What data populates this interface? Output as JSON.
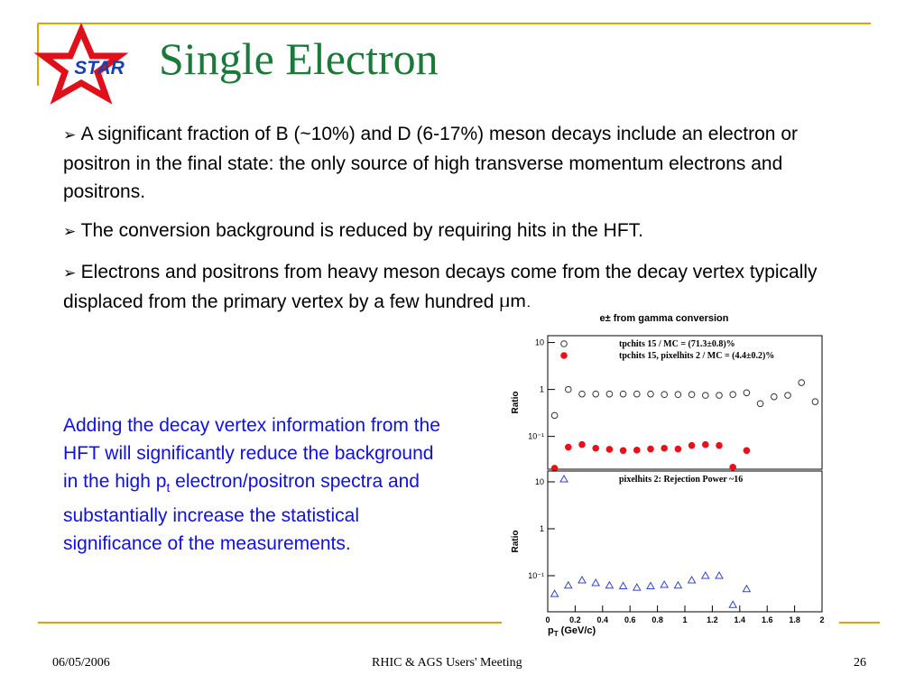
{
  "header": {
    "logo": "STAR",
    "title": "Single Electron"
  },
  "bullets": [
    "A significant fraction of B (~10%) and D (6-17%) meson decays include an electron or positron in the final state: the only source of high transverse momentum electrons and positrons.",
    "The conversion background is reduced by requiring hits in the HFT.",
    "Electrons and positrons from heavy meson decays come from the decay vertex typically displaced from the primary vertex by a few hundred μm."
  ],
  "note": {
    "before": "Adding the decay vertex information from the HFT will significantly reduce the background in the high p",
    "sub": "t",
    "after": " electron/positron spectra and substantially increase the statistical significance of the measurements."
  },
  "footer": {
    "date": "06/05/2006",
    "meeting": "RHIC & AGS Users' Meeting",
    "page": "26"
  },
  "chart_data": [
    {
      "type": "scatter",
      "title": "e± from gamma conversion",
      "y_label": "Ratio",
      "log_y": true,
      "xlim": [
        0,
        2
      ],
      "ylim": [
        0.02,
        14
      ],
      "yticks": [
        {
          "value": 0.1,
          "label": "10⁻¹"
        },
        1,
        10
      ],
      "x": [
        0.05,
        0.15,
        0.25,
        0.35,
        0.45,
        0.55,
        0.65,
        0.75,
        0.85,
        0.95,
        1.05,
        1.15,
        1.25,
        1.35,
        1.45,
        1.55,
        1.65,
        1.75,
        1.85,
        1.95
      ],
      "series": [
        {
          "name": "tpchits 15 / MC = (71.3±0.8)%",
          "color": "#333333",
          "marker": "circle-open",
          "values": [
            0.28,
            1.0,
            0.8,
            0.8,
            0.8,
            0.8,
            0.8,
            0.8,
            0.78,
            0.78,
            0.78,
            0.75,
            0.75,
            0.78,
            0.85,
            0.5,
            0.7,
            0.75,
            1.4,
            0.55
          ]
        },
        {
          "name": "tpchits 15, pixelhits 2 / MC = (4.4±0.2)%",
          "color": "#e8101a",
          "marker": "circle",
          "values": [
            0.021,
            0.059,
            0.067,
            0.056,
            0.053,
            0.05,
            0.051,
            0.054,
            0.056,
            0.054,
            0.064,
            0.067,
            0.064,
            0.022,
            0.05,
            null,
            null,
            null,
            null,
            null
          ]
        }
      ]
    },
    {
      "type": "scatter",
      "y_label": "Ratio",
      "log_y": true,
      "x_label": "p",
      "x_label_sub": "T",
      "x_label_rest": " (GeV/c)",
      "xlim": [
        0,
        2
      ],
      "xticks": [
        0,
        0.2,
        0.4,
        0.6,
        0.8,
        1,
        1.2,
        1.4,
        1.6,
        1.8,
        2
      ],
      "ylim": [
        0.017,
        17
      ],
      "yticks": [
        {
          "value": 0.1,
          "label": "10⁻¹"
        },
        1,
        10
      ],
      "x": [
        0.05,
        0.15,
        0.25,
        0.35,
        0.45,
        0.55,
        0.65,
        0.75,
        0.85,
        0.95,
        1.05,
        1.15,
        1.25,
        1.35,
        1.45
      ],
      "series": [
        {
          "name": "pixelhits 2: Rejection Power ~16",
          "color": "#3344cc",
          "marker": "triangle-open",
          "values": [
            0.041,
            0.062,
            0.08,
            0.07,
            0.062,
            0.06,
            0.056,
            0.06,
            0.064,
            0.062,
            0.08,
            0.1,
            0.1,
            0.024,
            0.052
          ]
        }
      ]
    }
  ]
}
